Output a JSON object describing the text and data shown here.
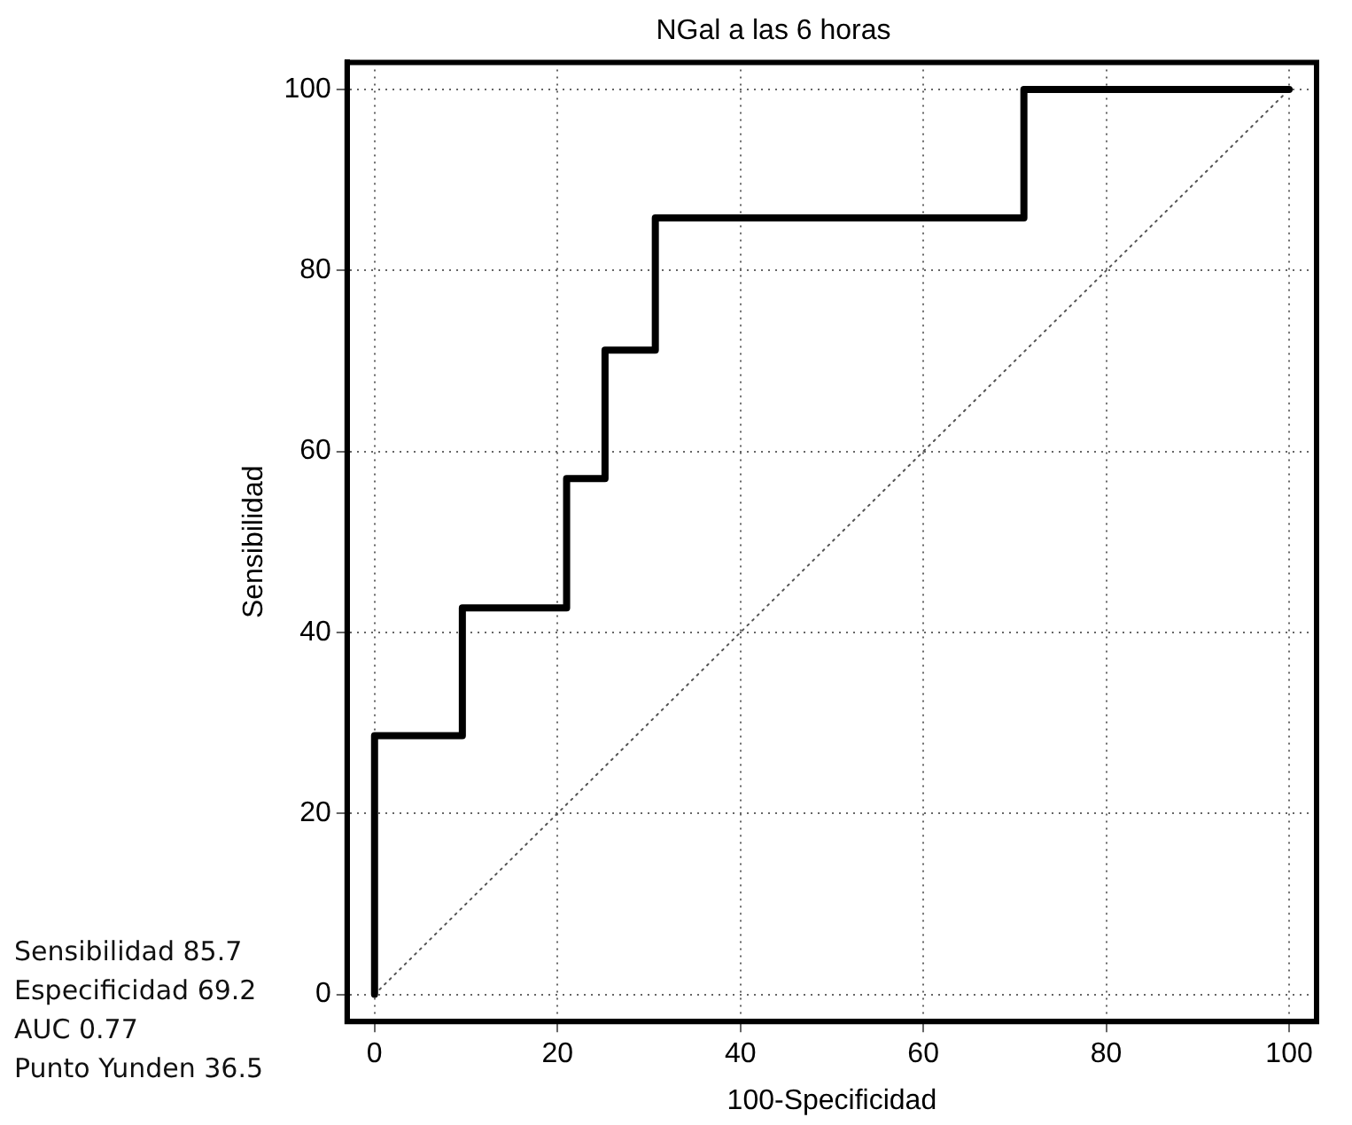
{
  "chart_data": {
    "type": "line",
    "title": "NGal a las 6 horas",
    "xlabel": "100-Specificidad",
    "ylabel": "Sensibilidad",
    "series": [
      {
        "color": "#000000",
        "x": [
          0,
          0,
          9.6,
          9.6,
          21.0,
          21.0,
          25.2,
          25.2,
          30.7,
          30.7,
          71.0,
          71.0,
          100
        ],
        "values": [
          0,
          28.6,
          28.6,
          42.7,
          42.7,
          57.0,
          57.0,
          71.2,
          71.2,
          85.8,
          85.8,
          100,
          100
        ]
      },
      {
        "color": "#555555",
        "line_style": "dotted",
        "x": [
          0,
          100
        ],
        "values": [
          0,
          100
        ]
      }
    ],
    "xlim": [
      -3,
      103
    ],
    "ylim": [
      -3,
      103
    ],
    "xticks": [
      0,
      20,
      40,
      60,
      80,
      100
    ],
    "yticks": [
      0,
      20,
      40,
      60,
      80,
      100
    ],
    "grid": true,
    "legend": false,
    "marker": "none",
    "annotations": [
      "Sensibilidad 85.7",
      "Especificidad 69.2",
      "AUC 0.77",
      "Punto Yunden 36.5"
    ]
  }
}
